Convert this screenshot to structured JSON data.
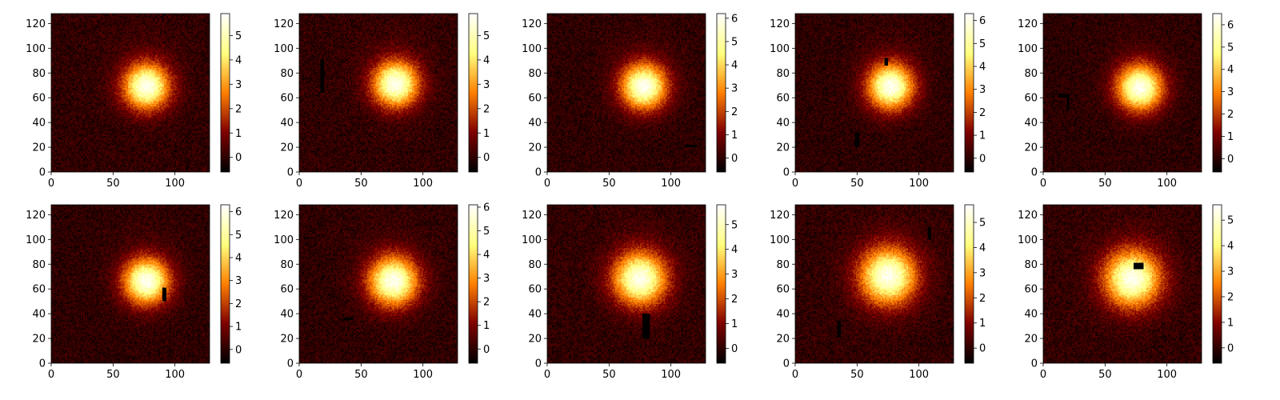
{
  "chart_data": {
    "type": "heatmap",
    "colormap": "afmhot",
    "grid": false,
    "layout": {
      "rows": 2,
      "cols": 5
    },
    "xlim": [
      0,
      128
    ],
    "ylim": [
      0,
      128
    ],
    "xticks": [
      "0",
      "50",
      "100"
    ],
    "yticks": [
      "0",
      "20",
      "40",
      "60",
      "80",
      "100",
      "120"
    ],
    "panels": [
      {
        "blob": {
          "cx": 77,
          "cy": 69,
          "sigma": 13
        },
        "occlusions": [],
        "vmin": -0.6,
        "vmax": 5.9,
        "colorbar_ticks": [
          "0",
          "1",
          "2",
          "3",
          "4",
          "5"
        ]
      },
      {
        "blob": {
          "cx": 78,
          "cy": 71,
          "sigma": 13
        },
        "occlusions": [
          [
            17,
            64,
            3,
            27
          ]
        ],
        "vmin": -0.6,
        "vmax": 5.9,
        "colorbar_ticks": [
          "0",
          "1",
          "2",
          "3",
          "4",
          "5"
        ]
      },
      {
        "blob": {
          "cx": 78,
          "cy": 69,
          "sigma": 13
        },
        "occlusions": [
          [
            111,
            20,
            10,
            2
          ]
        ],
        "vmin": -0.6,
        "vmax": 6.2,
        "colorbar_ticks": [
          "0",
          "1",
          "2",
          "3",
          "4",
          "5",
          "6"
        ]
      },
      {
        "blob": {
          "cx": 77,
          "cy": 69,
          "sigma": 13
        },
        "occlusions": [
          [
            72,
            86,
            3,
            6
          ],
          [
            48,
            20,
            4,
            12
          ]
        ],
        "vmin": -0.6,
        "vmax": 6.3,
        "colorbar_ticks": [
          "0",
          "1",
          "2",
          "3",
          "4",
          "5",
          "6"
        ]
      },
      {
        "blob": {
          "cx": 78,
          "cy": 68,
          "sigma": 13
        },
        "occlusions": [
          [
            12,
            60,
            9,
            3
          ],
          [
            19,
            50,
            2,
            12
          ]
        ],
        "vmin": -0.6,
        "vmax": 6.5,
        "colorbar_ticks": [
          "0",
          "1",
          "2",
          "3",
          "4",
          "5",
          "6"
        ]
      },
      {
        "blob": {
          "cx": 77,
          "cy": 66,
          "sigma": 13
        },
        "occlusions": [
          [
            90,
            50,
            3,
            11
          ]
        ],
        "vmin": -0.6,
        "vmax": 6.3,
        "colorbar_ticks": [
          "0",
          "1",
          "2",
          "3",
          "4",
          "5",
          "6"
        ]
      },
      {
        "blob": {
          "cx": 76,
          "cy": 66,
          "sigma": 14
        },
        "occlusions": [
          [
            36,
            35,
            7,
            2
          ]
        ],
        "vmin": -0.6,
        "vmax": 6.1,
        "colorbar_ticks": [
          "0",
          "1",
          "2",
          "3",
          "4",
          "5",
          "6"
        ]
      },
      {
        "blob": {
          "cx": 75,
          "cy": 68,
          "sigma": 15
        },
        "occlusions": [
          [
            77,
            20,
            6,
            20
          ]
        ],
        "vmin": -0.6,
        "vmax": 5.8,
        "colorbar_ticks": [
          "0",
          "1",
          "2",
          "3",
          "4",
          "5"
        ]
      },
      {
        "blob": {
          "cx": 75,
          "cy": 70,
          "sigma": 16
        },
        "occlusions": [
          [
            34,
            21,
            3,
            13
          ],
          [
            107,
            100,
            3,
            10
          ]
        ],
        "vmin": -0.6,
        "vmax": 5.7,
        "colorbar_ticks": [
          "0",
          "1",
          "2",
          "3",
          "4",
          "5"
        ]
      },
      {
        "blob": {
          "cx": 72,
          "cy": 68,
          "sigma": 16
        },
        "occlusions": [
          [
            73,
            76,
            8,
            5
          ]
        ],
        "vmin": -0.6,
        "vmax": 5.6,
        "colorbar_ticks": [
          "0",
          "1",
          "2",
          "3",
          "4",
          "5"
        ]
      }
    ]
  }
}
